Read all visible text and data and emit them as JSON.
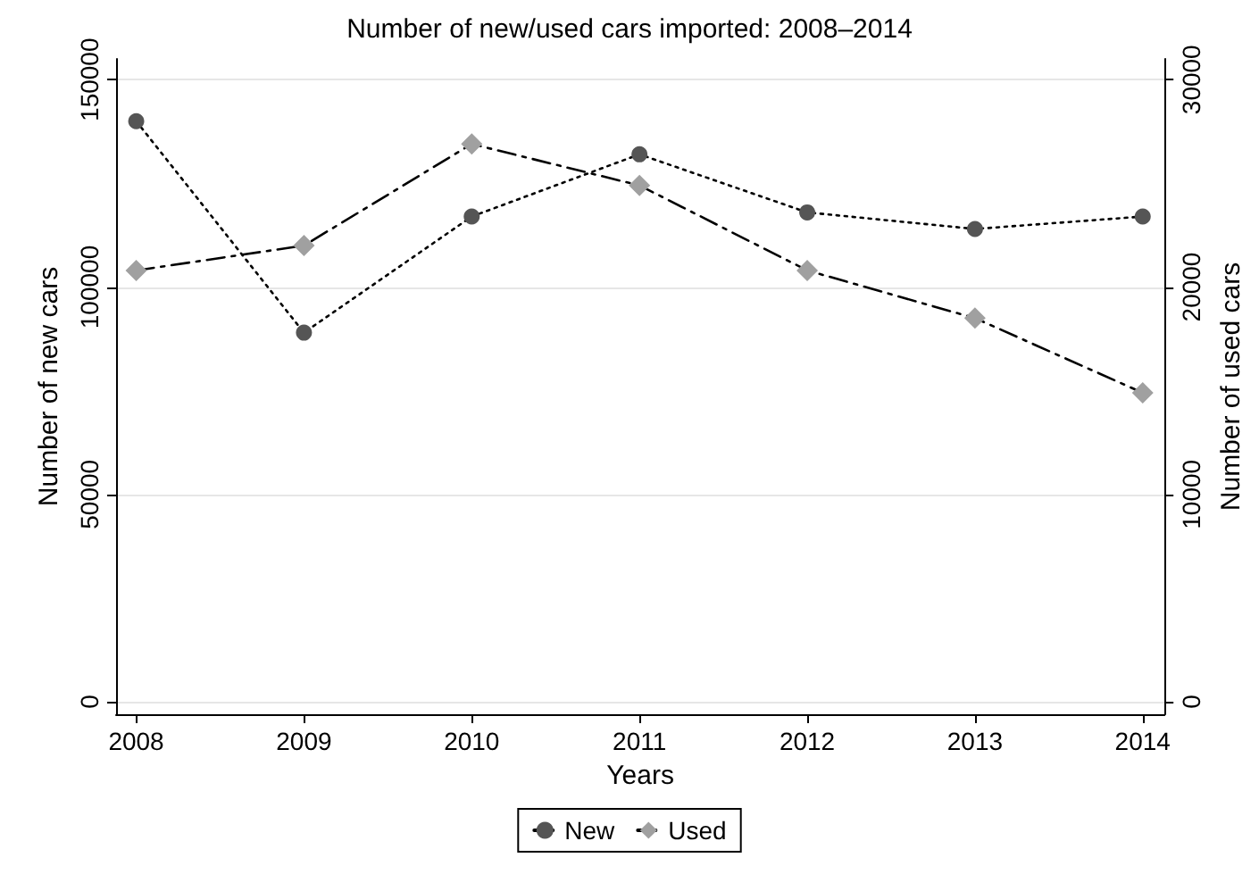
{
  "chart_data": {
    "type": "line",
    "title": "Number of new/used cars imported: 2008–2014",
    "xlabel": "Years",
    "ylabel": "Number of new cars",
    "y2label": "Number of used cars",
    "x": [
      2008,
      2009,
      2010,
      2011,
      2012,
      2013,
      2014
    ],
    "xlim": [
      2007.88,
      2014.13
    ],
    "xticks": [
      2008,
      2009,
      2010,
      2011,
      2012,
      2013,
      2014
    ],
    "ylim": [
      -3000,
      155000
    ],
    "yticks": [
      0,
      50000,
      100000,
      150000
    ],
    "y2lim": [
      -600,
      31000
    ],
    "y2ticks": [
      0,
      10000,
      20000,
      30000
    ],
    "series": [
      {
        "name": "New",
        "color": "#555555",
        "values": [
          140000,
          89000,
          117000,
          132000,
          118000,
          114000,
          117000
        ],
        "marker": "circle",
        "line_style": "dotted"
      },
      {
        "name": "Used",
        "color": "#a0a0a0",
        "values": [
          20800,
          22000,
          26900,
          24900,
          20800,
          18500,
          14900
        ],
        "axis": "y2",
        "marker": "diamond",
        "line_style": "dashed"
      }
    ],
    "grid": "y",
    "legend": "bottom"
  }
}
